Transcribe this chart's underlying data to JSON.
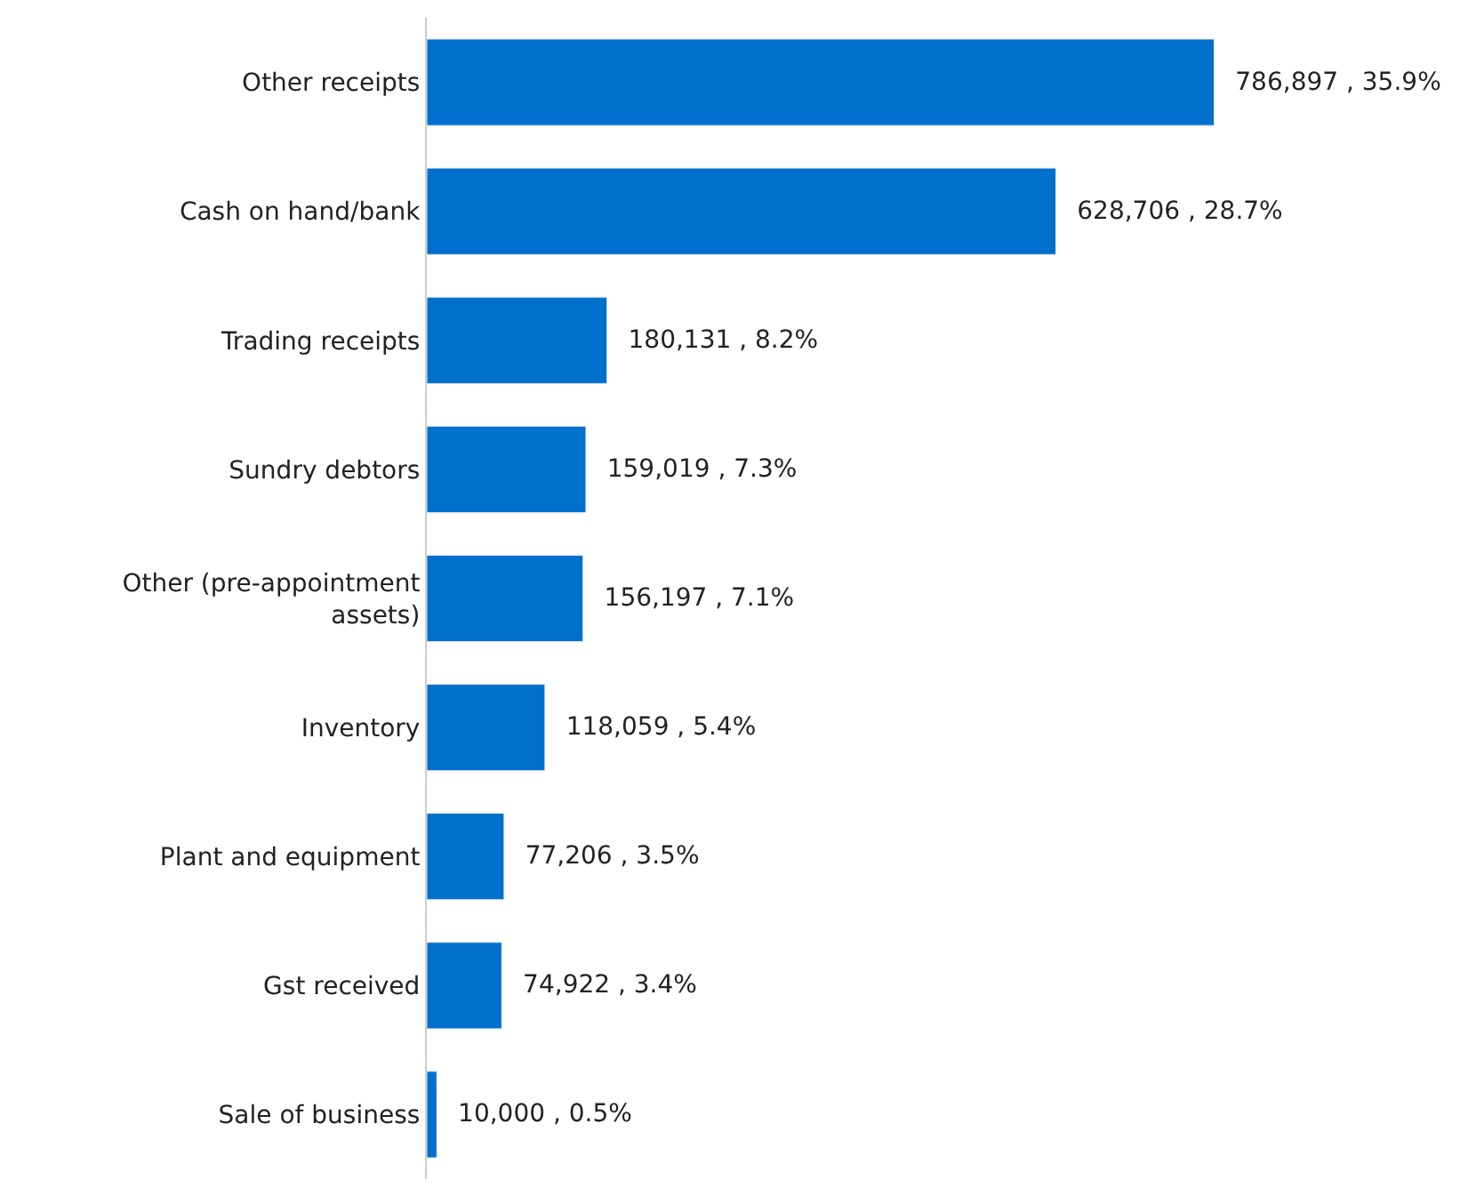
{
  "chart_data": {
    "type": "bar",
    "orientation": "horizontal",
    "categories": [
      "Other receipts",
      "Cash on hand/bank",
      "Trading receipts",
      "Sundry debtors",
      "Other (pre-appointment assets)",
      "Inventory",
      "Plant and equipment",
      "Gst received",
      "Sale of business"
    ],
    "values": [
      786897,
      628706,
      180131,
      159019,
      156197,
      118059,
      77206,
      74922,
      10000
    ],
    "value_labels": [
      "786,897 , 35.9%",
      "628,706 , 28.7%",
      "180,131 , 8.2%",
      "159,019 , 7.3%",
      "156,197 , 7.1%",
      "118,059 , 5.4%",
      "77,206 , 3.5%",
      "74,922 , 3.4%",
      "10,000 , 0.5%"
    ],
    "color": "#0070cc"
  }
}
